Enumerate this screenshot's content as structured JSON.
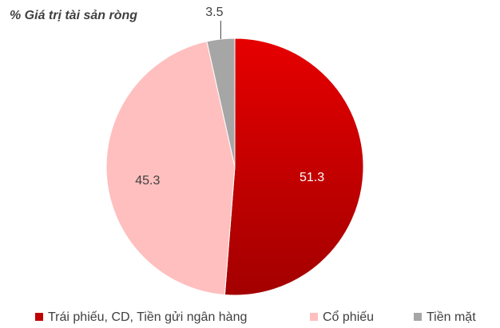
{
  "chart_data": {
    "type": "pie",
    "title": "% Giá trị tài sản ròng",
    "categories": [
      "Trái phiếu, CD, Tiền gửi ngân hàng",
      "Cổ phiếu",
      "Tiền mặt"
    ],
    "values": [
      51.3,
      45.3,
      3.5
    ],
    "colors": [
      "#d40000",
      "#ffbfbf",
      "#a6a6a6"
    ],
    "legend": "bottom"
  }
}
